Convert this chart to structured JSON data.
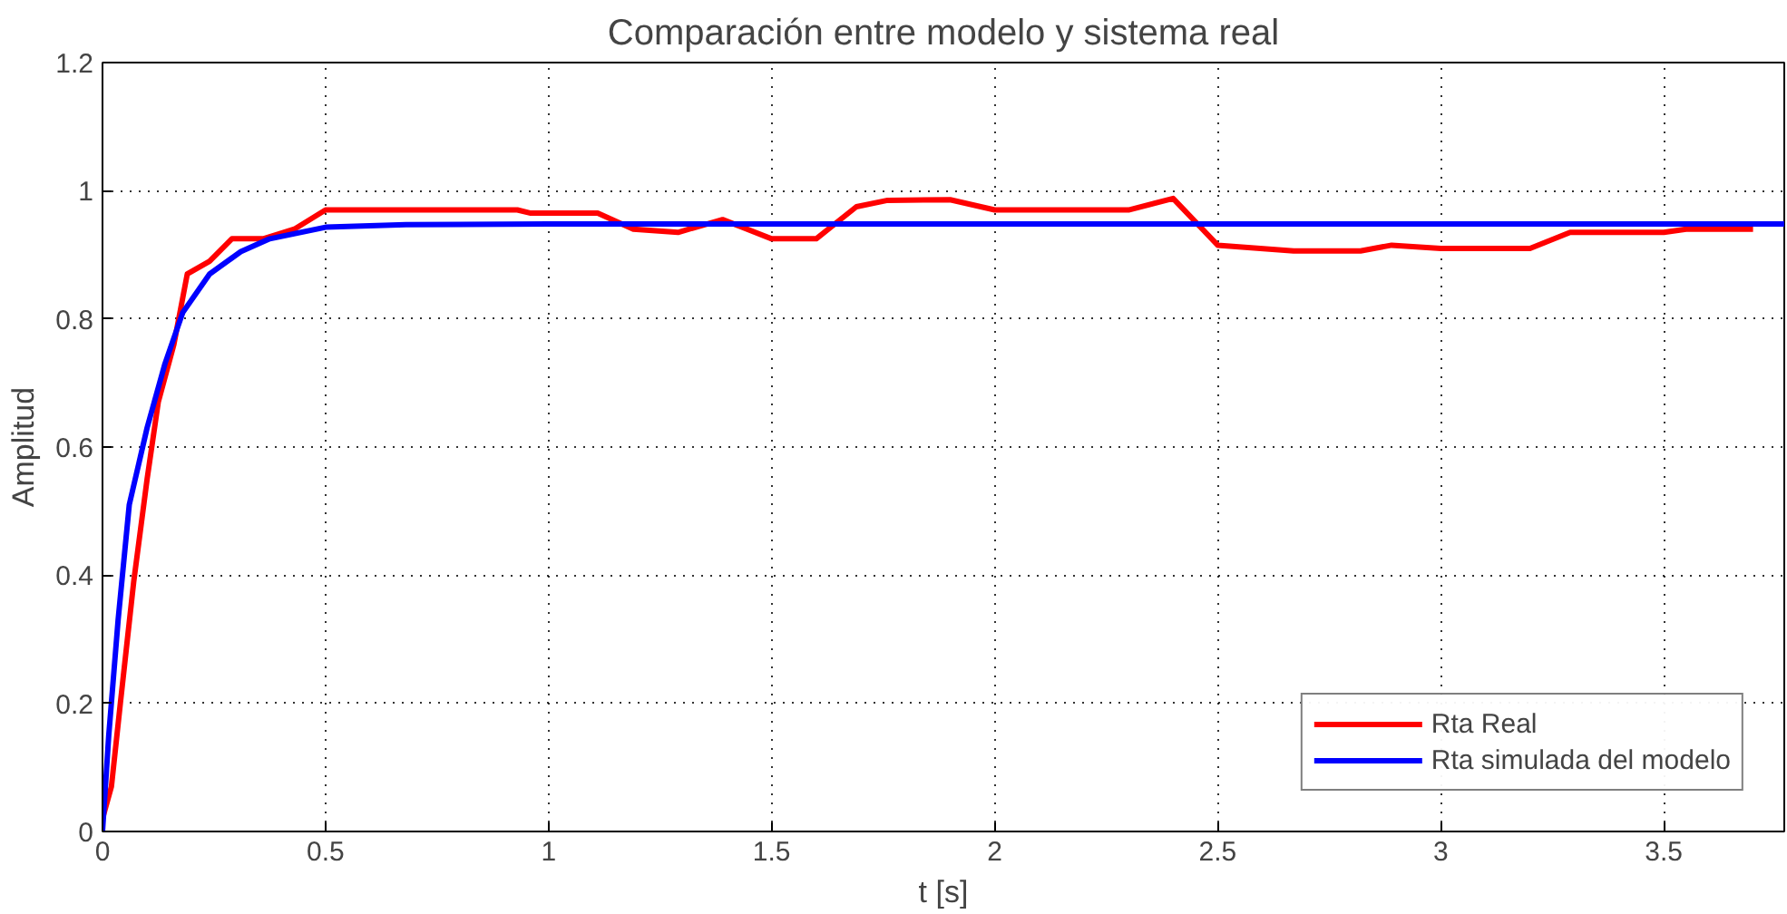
{
  "chart_data": {
    "type": "line",
    "title": "Comparación entre modelo y sistema real",
    "xlabel": "t [s]",
    "ylabel": "Amplitud",
    "xlim": [
      0,
      3.77
    ],
    "ylim": [
      0,
      1.2
    ],
    "xticks": [
      0,
      0.5,
      1,
      1.5,
      2,
      2.5,
      3,
      3.5
    ],
    "yticks": [
      0,
      0.2,
      0.4,
      0.6,
      0.8,
      1,
      1.2
    ],
    "grid": true,
    "legend": "bottom right",
    "line_style": "solid",
    "series": [
      {
        "name": "Rta Real",
        "color": "#ff0000",
        "x": [
          0,
          0.02,
          0.04,
          0.07,
          0.1,
          0.125,
          0.16,
          0.19,
          0.24,
          0.29,
          0.36,
          0.43,
          0.5,
          0.93,
          0.96,
          1.11,
          1.19,
          1.29,
          1.39,
          1.5,
          1.6,
          1.69,
          1.76,
          1.9,
          2.0,
          2.3,
          2.4,
          2.5,
          2.67,
          2.82,
          2.89,
          3.0,
          3.2,
          3.29,
          3.5,
          3.55,
          3.7
        ],
        "values": [
          0.02,
          0.07,
          0.2,
          0.39,
          0.55,
          0.67,
          0.76,
          0.87,
          0.89,
          0.925,
          0.925,
          0.94,
          0.97,
          0.97,
          0.965,
          0.965,
          0.94,
          0.935,
          0.955,
          0.925,
          0.925,
          0.975,
          0.985,
          0.986,
          0.97,
          0.97,
          0.988,
          0.915,
          0.906,
          0.906,
          0.915,
          0.91,
          0.91,
          0.935,
          0.935,
          0.94,
          0.94
        ]
      },
      {
        "name": "Rta simulada del modelo",
        "color": "#0000ff",
        "x": [
          0,
          0.014,
          0.035,
          0.06,
          0.1,
          0.14,
          0.18,
          0.24,
          0.31,
          0.375,
          0.5,
          0.68,
          1.0,
          2.0,
          3.0,
          3.77
        ],
        "values": [
          0,
          0.15,
          0.33,
          0.51,
          0.63,
          0.73,
          0.81,
          0.87,
          0.905,
          0.925,
          0.943,
          0.947,
          0.948,
          0.948,
          0.948,
          0.948
        ]
      }
    ]
  }
}
